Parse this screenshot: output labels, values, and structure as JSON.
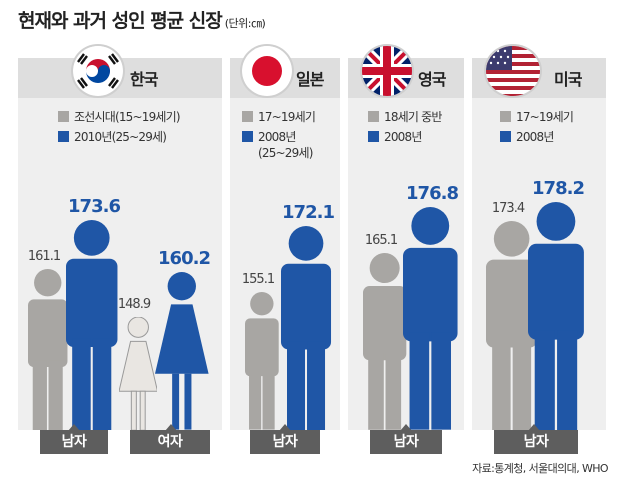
{
  "title": "현재와 과거 성인 평균 신장",
  "unit": "(단위:㎝)",
  "source": "자료:통계청, 서울대의대, WHO",
  "colors": {
    "past": "#a8a6a3",
    "now": "#1f56a6",
    "bar": "#5e5e5e"
  },
  "legend": {
    "korea": [
      "조선시대(15~19세기)",
      "2010년(25~29세)"
    ],
    "japan": [
      "17~19세기",
      "2008년",
      "(25~29세)"
    ],
    "uk": [
      "18세기 중반",
      "2008년"
    ],
    "usa": [
      "17~19세기",
      "2008년"
    ]
  },
  "labels": {
    "male": "남자",
    "female": "여자"
  },
  "chart_data": {
    "type": "bar",
    "title": "현재와 과거 성인 평균 신장",
    "unit": "cm",
    "categories": [
      "한국 남자",
      "한국 여자",
      "일본 남자",
      "영국 남자",
      "미국 남자"
    ],
    "countries": [
      "한국",
      "일본",
      "영국",
      "미국"
    ],
    "series": [
      {
        "name": "past",
        "values": [
          161.1,
          148.9,
          155.1,
          165.1,
          173.4
        ]
      },
      {
        "name": "present",
        "values": [
          173.6,
          160.2,
          172.1,
          176.8,
          178.2
        ]
      }
    ],
    "value_labels": {
      "past": [
        "161.1",
        "148.9",
        "155.1",
        "165.1",
        "173.4"
      ],
      "present": [
        "173.6",
        "160.2",
        "172.1",
        "176.8",
        "178.2"
      ]
    }
  }
}
